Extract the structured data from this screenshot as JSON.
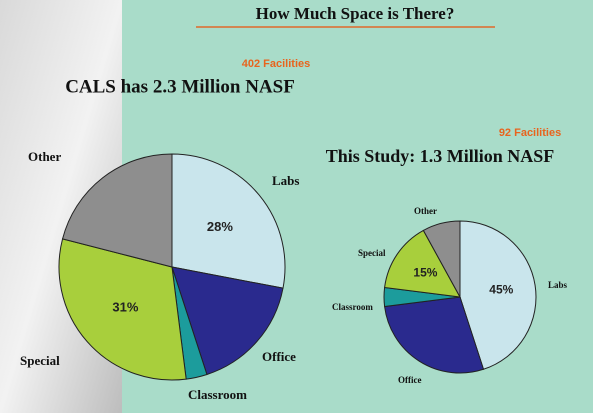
{
  "slide": {
    "title": "How Much Space is There?"
  },
  "chart_data": [
    {
      "type": "pie",
      "title": "CALS has 2.3 Million NASF",
      "subtitle": "402 Facilities",
      "categories": [
        "Labs",
        "Office",
        "Classroom",
        "Special",
        "Other"
      ],
      "values": [
        28,
        17,
        3,
        31,
        21
      ],
      "value_labels": [
        "28%",
        null,
        null,
        "31%",
        null
      ],
      "colors": [
        "#c9e5ec",
        "#2a2a8e",
        "#1c9c9c",
        "#a8cf3c",
        "#8e8e8e"
      ]
    },
    {
      "type": "pie",
      "title": "This Study:  1.3 Million NASF",
      "subtitle": "92 Facilities",
      "categories": [
        "Labs",
        "Office",
        "Classroom",
        "Special",
        "Other"
      ],
      "values": [
        45,
        28,
        4,
        15,
        8
      ],
      "value_labels": [
        "45%",
        null,
        null,
        "15%",
        null
      ],
      "colors": [
        "#c9e5ec",
        "#2a2a8e",
        "#1c9c9c",
        "#a8cf3c",
        "#8e8e8e"
      ]
    }
  ]
}
